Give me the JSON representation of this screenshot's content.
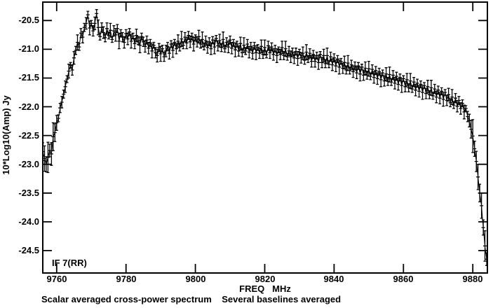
{
  "figure": {
    "y_axis_label": "10*Log10(Amp) Jy",
    "x_axis_label": "FREQ   MHz",
    "if_label": "IF 7(RR)",
    "caption": "Scalar averaged cross-power spectrum    Several baselines averaged"
  },
  "chart_data": {
    "type": "line",
    "title": "Scalar averaged cross-power spectrum    Several baselines averaged",
    "xlabel": "FREQ MHz",
    "ylabel": "10*Log10(Amp) Jy",
    "annotation": "IF 7(RR)",
    "marker": "plus-with-error-bars",
    "line_color": "#000000",
    "background": "#ffffff",
    "grid": false,
    "xlim": [
      9756.0,
      9884.2
    ],
    "ylim": [
      -24.89,
      -20.18
    ],
    "xticks": [
      9760,
      9780,
      9800,
      9820,
      9840,
      9860,
      9880
    ],
    "yticks": [
      -20.5,
      -21.0,
      -21.5,
      -22.0,
      -22.5,
      -23.0,
      -23.5,
      -24.0,
      -24.5
    ],
    "x_start": 9756.0,
    "x_step": 0.5,
    "values": [
      -22.78,
      -22.9,
      -23.0,
      -22.88,
      -22.76,
      -22.82,
      -22.52,
      -22.45,
      -22.28,
      -22.2,
      -22.02,
      -21.92,
      -21.78,
      -21.65,
      -21.52,
      -21.38,
      -21.28,
      -21.36,
      -21.15,
      -21.02,
      -20.88,
      -20.96,
      -20.72,
      -20.79,
      -20.62,
      -20.55,
      -20.4,
      -20.63,
      -20.55,
      -20.68,
      -20.55,
      -20.38,
      -20.62,
      -20.78,
      -20.62,
      -20.71,
      -20.8,
      -20.64,
      -20.76,
      -20.67,
      -20.83,
      -20.68,
      -20.75,
      -20.64,
      -20.86,
      -20.72,
      -20.79,
      -20.88,
      -20.73,
      -20.82,
      -20.7,
      -20.86,
      -20.77,
      -20.9,
      -20.76,
      -20.85,
      -20.93,
      -20.78,
      -20.87,
      -20.95,
      -20.84,
      -20.98,
      -20.89,
      -21.03,
      -20.93,
      -21.06,
      -21.11,
      -20.97,
      -21.08,
      -20.99,
      -21.13,
      -21.03,
      -20.95,
      -21.07,
      -20.91,
      -21.02,
      -20.88,
      -20.99,
      -20.86,
      -20.96,
      -20.82,
      -20.93,
      -20.79,
      -20.89,
      -20.76,
      -20.87,
      -20.78,
      -20.91,
      -20.8,
      -20.87,
      -20.78,
      -20.91,
      -20.83,
      -20.95,
      -20.85,
      -20.97,
      -20.87,
      -20.99,
      -20.84,
      -20.96,
      -20.81,
      -20.94,
      -20.85,
      -20.97,
      -20.83,
      -20.99,
      -20.88,
      -20.96,
      -20.84,
      -20.98,
      -20.89,
      -21.01,
      -20.91,
      -21.03,
      -20.9,
      -21.06,
      -20.93,
      -21.03,
      -20.91,
      -21.05,
      -20.95,
      -21.07,
      -20.94,
      -21.06,
      -20.97,
      -21.07,
      -20.95,
      -21.09,
      -20.97,
      -21.09,
      -20.94,
      -21.06,
      -20.96,
      -21.09,
      -20.99,
      -21.11,
      -21.01,
      -21.09,
      -20.97,
      -21.11,
      -20.99,
      -21.13,
      -21.03,
      -21.13,
      -21.05,
      -21.15,
      -21.04,
      -21.16,
      -21.05,
      -21.15,
      -21.07,
      -21.19,
      -21.05,
      -21.17,
      -21.07,
      -21.21,
      -21.09,
      -21.21,
      -21.11,
      -21.23,
      -21.09,
      -21.23,
      -21.11,
      -21.25,
      -21.11,
      -21.26,
      -21.13,
      -21.27,
      -21.15,
      -21.29,
      -21.17,
      -21.31,
      -21.21,
      -21.33,
      -21.23,
      -21.36,
      -21.24,
      -21.37,
      -21.27,
      -21.39,
      -21.29,
      -21.41,
      -21.29,
      -21.43,
      -21.31,
      -21.45,
      -21.33,
      -21.45,
      -21.34,
      -21.47,
      -21.35,
      -21.49,
      -21.37,
      -21.51,
      -21.39,
      -21.53,
      -21.41,
      -21.55,
      -21.43,
      -21.56,
      -21.44,
      -21.57,
      -21.45,
      -21.59,
      -21.47,
      -21.61,
      -21.49,
      -21.63,
      -21.51,
      -21.65,
      -21.53,
      -21.67,
      -21.55,
      -21.69,
      -21.57,
      -21.71,
      -21.59,
      -21.73,
      -21.61,
      -21.75,
      -21.63,
      -21.77,
      -21.65,
      -21.79,
      -21.67,
      -21.81,
      -21.69,
      -21.83,
      -21.71,
      -21.85,
      -21.73,
      -21.87,
      -21.75,
      -21.89,
      -21.79,
      -21.93,
      -21.83,
      -21.97,
      -21.85,
      -21.99,
      -21.89,
      -22.03,
      -21.94,
      -22.09,
      -22.03,
      -22.17,
      -22.24,
      -22.39,
      -22.51,
      -22.73,
      -22.95,
      -23.22,
      -23.5,
      -23.72,
      -24.1,
      -24.42,
      -24.65
    ],
    "error_bars": {
      "cycle": [
        0.07,
        0.1,
        0.06,
        0.12,
        0.05,
        0.09,
        0.11,
        0.07,
        0.13,
        0.06,
        0.08,
        0.1
      ],
      "low_signal_threshold": -22.3,
      "low_signal_scale": 2.2
    }
  }
}
